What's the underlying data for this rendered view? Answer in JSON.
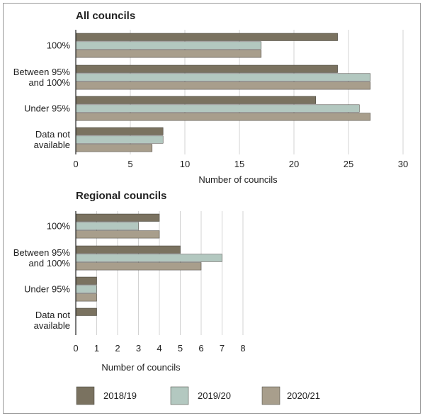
{
  "legend": [
    {
      "label": "2018/19",
      "color": "#7a7260"
    },
    {
      "label": "2019/20",
      "color": "#b3c8c0"
    },
    {
      "label": "2020/21",
      "color": "#a89e8c"
    }
  ],
  "chart_data": [
    {
      "type": "bar",
      "orientation": "horizontal",
      "title": "All councils",
      "categories": [
        [
          "100%"
        ],
        [
          "Between 95%",
          "and 100%"
        ],
        [
          "Under 95%"
        ],
        [
          "Data not",
          "available"
        ]
      ],
      "series": [
        {
          "name": "2018/19",
          "values": [
            24,
            24,
            22,
            8
          ]
        },
        {
          "name": "2019/20",
          "values": [
            17,
            27,
            26,
            8
          ]
        },
        {
          "name": "2020/21",
          "values": [
            17,
            27,
            27,
            7
          ]
        }
      ],
      "xlabel": "Number of councils",
      "xlim": [
        0,
        30
      ],
      "xticks": [
        0,
        5,
        10,
        15,
        20,
        25,
        30
      ],
      "grid": "vertical"
    },
    {
      "type": "bar",
      "orientation": "horizontal",
      "title": "Regional councils",
      "categories": [
        [
          "100%"
        ],
        [
          "Between 95%",
          "and 100%"
        ],
        [
          "Under 95%"
        ],
        [
          "Data not",
          "available"
        ]
      ],
      "series": [
        {
          "name": "2018/19",
          "values": [
            4,
            5,
            1,
            1
          ]
        },
        {
          "name": "2019/20",
          "values": [
            3,
            7,
            1,
            0
          ]
        },
        {
          "name": "2020/21",
          "values": [
            4,
            6,
            1,
            0
          ]
        }
      ],
      "xlabel": "Number of councils",
      "xlim": [
        0,
        8
      ],
      "xticks": [
        0,
        1,
        2,
        3,
        4,
        5,
        6,
        7,
        8
      ],
      "grid": "vertical"
    }
  ]
}
